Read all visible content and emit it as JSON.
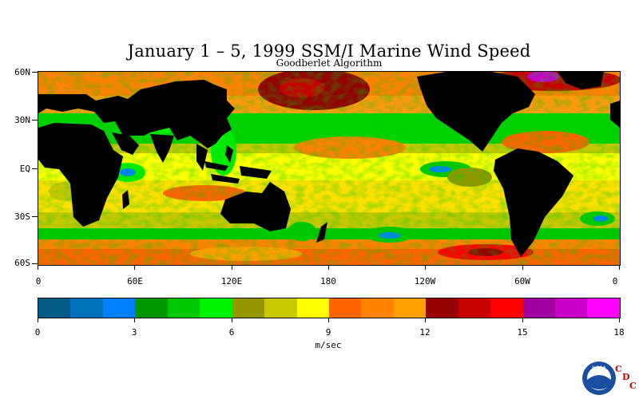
{
  "title": "January 1 – 5, 1999 SSM/I Marine Wind Speed",
  "subtitle": "Goodberlet Algorithm",
  "lat_labels": [
    "60N",
    "30N",
    "EQ",
    "30S",
    "60S"
  ],
  "lon_labels": [
    "0",
    "60E",
    "120E",
    "180",
    "120W",
    "60W",
    "0"
  ],
  "colorbar": {
    "unit": "m/sec",
    "tick_labels": [
      "0",
      "3",
      "6",
      "9",
      "12",
      "15",
      "18"
    ],
    "range": [
      0,
      18
    ],
    "step": 1,
    "colors": [
      "#005a86",
      "#0070b8",
      "#0080ff",
      "#009400",
      "#00c800",
      "#00f000",
      "#969600",
      "#c8c800",
      "#ffff00",
      "#ff6400",
      "#ff8200",
      "#ffa000",
      "#960000",
      "#c80000",
      "#ff0000",
      "#a000a0",
      "#c800c8",
      "#ff00ff"
    ]
  },
  "map_style": {
    "land_color": "#000000",
    "background_field": "wind speed shading"
  },
  "logo": {
    "name": "NOAA",
    "letters": [
      "C",
      "D",
      "C"
    ],
    "ring_color": "#1a4ea0",
    "letter_color": "#cc0000"
  }
}
